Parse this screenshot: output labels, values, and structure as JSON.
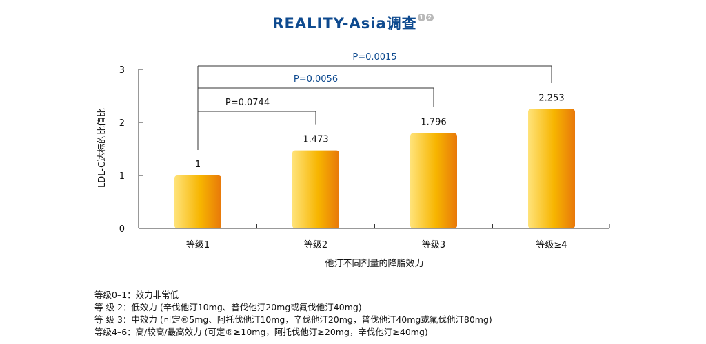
{
  "title": "REALITY-Asia调查",
  "title_refs": [
    "1",
    "2"
  ],
  "chart_data": {
    "type": "bar",
    "categories": [
      "等级1",
      "等级2",
      "等级3",
      "等级≥4"
    ],
    "values": [
      1,
      1.473,
      1.796,
      2.253
    ],
    "value_labels": [
      "1",
      "1.473",
      "1.796",
      "2.253"
    ],
    "xlabel": "他汀不同剂量的降脂效力",
    "ylabel": "LDL-C达标的比值比",
    "ylim": [
      0,
      3
    ],
    "yticks": [
      0,
      1,
      2,
      3
    ],
    "grid": false,
    "comparisons": [
      {
        "from": "等级1",
        "to": "等级2",
        "label": "P=0.0744"
      },
      {
        "from": "等级1",
        "to": "等级3",
        "label": "P=0.0056"
      },
      {
        "from": "等级1",
        "to": "等级≥4",
        "label": "P=0.0015"
      }
    ],
    "colors": {
      "bar_light": "#ffe37a",
      "bar_mid": "#f7b500",
      "bar_dark": "#e8780a",
      "p_black": "#111111",
      "p_blue": "#0e4a8f",
      "axis": "#333333"
    }
  },
  "footnotes": [
    "等级0–1：效力非常低",
    "等  级  2：低效力 (辛伐他汀10mg、普伐他汀20mg或氟伐他汀40mg)",
    "等  级  3：中效力 (可定®5mg、阿托伐他汀10mg，辛伐他汀20mg，普伐他汀40mg或氟伐他汀80mg)",
    "等级4–6：高/较高/最高效力 (可定®≥10mg，阿托伐他汀≥20mg，辛伐他汀≥40mg)"
  ]
}
